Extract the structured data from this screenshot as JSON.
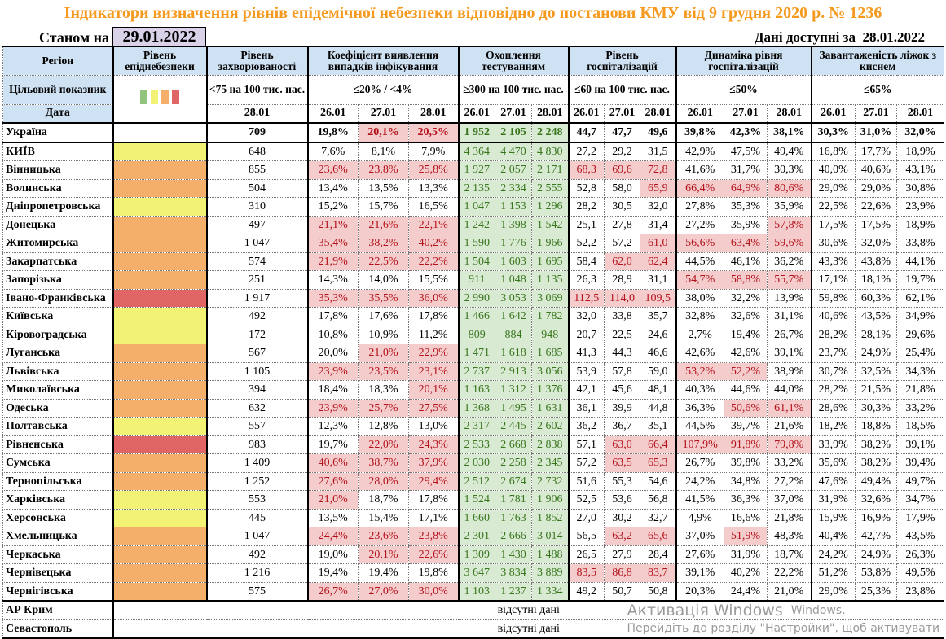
{
  "title": "Індикатори визначення рівнів епідемічної небезпеки відповідно до постанови КМУ від 9 грудня 2020 р. № 1236",
  "as_of_label": "Станом на",
  "as_of_date": "29.01.2022",
  "available_label": "Дані доступні за  28.01.2022",
  "level_colors": {
    "green": "#93c47d",
    "yellow": "#f2f274",
    "orange": "#f4b06b",
    "red": "#e06666"
  },
  "colors": {
    "header_bg": "#cfe2f3",
    "highlight_bg": "#f4cccc",
    "highlight_text": "#b4121b",
    "testing_bg": "#d9ead3",
    "testing_text": "#38761d"
  },
  "headers": {
    "region": "Регіон",
    "level": "Рівень епіднебезпеки",
    "incidence": "Рівень захворюваності",
    "coef": "Коефіцієнт виявлення випадків інфікування",
    "testing": "Охоплення тестуванням",
    "hosp": "Рівень госпіталізацій",
    "dyn": "Динаміка рівня госпіталізацій",
    "beds": "Завантаженість ліжок з киснем",
    "target_label": "Цільовий показник",
    "date_label": "Дата",
    "target_incidence": "<75 на 100 тис. нас.",
    "target_coef": "≤20% / <4%",
    "target_testing": "≥300 на 100 тис. нас.",
    "target_hosp": "≤60 на 100 тис. нас.",
    "target_dyn": "≤50%",
    "target_beds": "≤65%",
    "incidence_date": "28.01",
    "dates": [
      "26.01",
      "27.01",
      "28.01"
    ]
  },
  "thresholds": {
    "coef": 20,
    "hosp": 60,
    "dyn": 50,
    "beds": 65
  },
  "ukraine": [
    "Україна",
    "",
    "709",
    [
      "19,8%",
      "20,1%",
      "20,5%"
    ],
    [
      "1 952",
      "2 105",
      "2 248"
    ],
    [
      "44,7",
      "47,7",
      "49,6"
    ],
    [
      "39,8%",
      "42,3%",
      "38,1%"
    ],
    [
      "30,3%",
      "31,0%",
      "32,0%"
    ]
  ],
  "rows": [
    [
      "КИЇВ",
      "yellow",
      "648",
      [
        "7,6%",
        "8,1%",
        "7,9%"
      ],
      [
        "4 364",
        "4 470",
        "4 830"
      ],
      [
        "27,2",
        "29,2",
        "31,5"
      ],
      [
        "42,9%",
        "47,5%",
        "49,4%"
      ],
      [
        "16,8%",
        "17,7%",
        "18,9%"
      ]
    ],
    [
      "Вінницька",
      "orange",
      "855",
      [
        "23,6%",
        "23,8%",
        "25,8%"
      ],
      [
        "1 927",
        "2 057",
        "2 171"
      ],
      [
        "68,3",
        "69,6",
        "72,8"
      ],
      [
        "41,6%",
        "31,7%",
        "30,3%"
      ],
      [
        "40,0%",
        "40,6%",
        "43,1%"
      ]
    ],
    [
      "Волинська",
      "orange",
      "504",
      [
        "13,4%",
        "13,5%",
        "13,3%"
      ],
      [
        "2 135",
        "2 334",
        "2 555"
      ],
      [
        "52,8",
        "58,0",
        "65,9"
      ],
      [
        "66,4%",
        "64,9%",
        "80,6%"
      ],
      [
        "29,0%",
        "29,0%",
        "30,8%"
      ]
    ],
    [
      "Дніпропетровська",
      "yellow",
      "310",
      [
        "15,2%",
        "15,7%",
        "16,5%"
      ],
      [
        "1 047",
        "1 153",
        "1 296"
      ],
      [
        "28,2",
        "30,5",
        "32,0"
      ],
      [
        "27,8%",
        "35,3%",
        "35,9%"
      ],
      [
        "22,5%",
        "22,6%",
        "23,9%"
      ]
    ],
    [
      "Донецька",
      "orange",
      "497",
      [
        "21,1%",
        "21,6%",
        "22,1%"
      ],
      [
        "1 242",
        "1 398",
        "1 542"
      ],
      [
        "25,1",
        "27,8",
        "31,4"
      ],
      [
        "27,2%",
        "35,9%",
        "57,8%"
      ],
      [
        "17,5%",
        "17,5%",
        "18,9%"
      ]
    ],
    [
      "Житомирська",
      "orange",
      "1 047",
      [
        "35,4%",
        "38,2%",
        "40,2%"
      ],
      [
        "1 590",
        "1 776",
        "1 966"
      ],
      [
        "52,2",
        "57,2",
        "61,0"
      ],
      [
        "56,6%",
        "63,4%",
        "59,6%"
      ],
      [
        "30,6%",
        "32,0%",
        "33,8%"
      ]
    ],
    [
      "Закарпатська",
      "orange",
      "574",
      [
        "21,9%",
        "22,5%",
        "22,2%"
      ],
      [
        "1 504",
        "1 603",
        "1 695"
      ],
      [
        "58,4",
        "62,0",
        "62,4"
      ],
      [
        "44,5%",
        "46,1%",
        "36,2%"
      ],
      [
        "43,3%",
        "43,8%",
        "44,1%"
      ]
    ],
    [
      "Запорізька",
      "orange",
      "251",
      [
        "14,3%",
        "14,0%",
        "15,5%"
      ],
      [
        "911",
        "1 048",
        "1 135"
      ],
      [
        "26,3",
        "28,9",
        "31,1"
      ],
      [
        "54,7%",
        "58,8%",
        "55,7%"
      ],
      [
        "17,1%",
        "18,1%",
        "19,7%"
      ]
    ],
    [
      "Івано-Франківська",
      "red",
      "1 917",
      [
        "35,3%",
        "35,5%",
        "36,0%"
      ],
      [
        "2 990",
        "3 053",
        "3 069"
      ],
      [
        "112,5",
        "114,0",
        "109,5"
      ],
      [
        "38,0%",
        "32,2%",
        "13,9%"
      ],
      [
        "59,8%",
        "60,3%",
        "62,1%"
      ]
    ],
    [
      "Київська",
      "yellow",
      "492",
      [
        "17,8%",
        "17,6%",
        "17,8%"
      ],
      [
        "1 466",
        "1 642",
        "1 782"
      ],
      [
        "32,0",
        "33,8",
        "35,7"
      ],
      [
        "32,8%",
        "32,6%",
        "31,1%"
      ],
      [
        "40,6%",
        "43,5%",
        "34,9%"
      ]
    ],
    [
      "Кіровоградська",
      "yellow",
      "172",
      [
        "10,8%",
        "10,9%",
        "11,2%"
      ],
      [
        "809",
        "884",
        "948"
      ],
      [
        "20,7",
        "22,5",
        "24,6"
      ],
      [
        "2,7%",
        "19,4%",
        "26,7%"
      ],
      [
        "28,2%",
        "28,1%",
        "29,6%"
      ]
    ],
    [
      "Луганська",
      "orange",
      "567",
      [
        "20,0%",
        "21,0%",
        "22,9%"
      ],
      [
        "1 471",
        "1 618",
        "1 685"
      ],
      [
        "41,3",
        "44,3",
        "46,6"
      ],
      [
        "42,6%",
        "42,6%",
        "39,1%"
      ],
      [
        "23,7%",
        "24,9%",
        "25,4%"
      ]
    ],
    [
      "Львівська",
      "orange",
      "1 105",
      [
        "23,9%",
        "23,5%",
        "23,1%"
      ],
      [
        "2 737",
        "2 913",
        "3 056"
      ],
      [
        "53,9",
        "57,8",
        "59,0"
      ],
      [
        "53,2%",
        "52,2%",
        "38,9%"
      ],
      [
        "30,7%",
        "32,5%",
        "34,3%"
      ]
    ],
    [
      "Миколаївська",
      "orange",
      "394",
      [
        "18,4%",
        "18,3%",
        "20,1%"
      ],
      [
        "1 163",
        "1 312",
        "1 376"
      ],
      [
        "42,1",
        "45,6",
        "48,1"
      ],
      [
        "40,3%",
        "44,6%",
        "44,0%"
      ],
      [
        "28,2%",
        "21,5%",
        "21,8%"
      ]
    ],
    [
      "Одеська",
      "orange",
      "632",
      [
        "23,9%",
        "25,7%",
        "27,5%"
      ],
      [
        "1 368",
        "1 495",
        "1 631"
      ],
      [
        "36,1",
        "39,9",
        "44,8"
      ],
      [
        "36,3%",
        "50,6%",
        "61,1%"
      ],
      [
        "28,6%",
        "30,3%",
        "33,2%"
      ]
    ],
    [
      "Полтавська",
      "yellow",
      "557",
      [
        "12,3%",
        "12,8%",
        "13,0%"
      ],
      [
        "2 317",
        "2 445",
        "2 602"
      ],
      [
        "36,2",
        "36,7",
        "35,1"
      ],
      [
        "44,5%",
        "39,7%",
        "21,6%"
      ],
      [
        "18,2%",
        "18,8%",
        "18,5%"
      ]
    ],
    [
      "Рівненська",
      "red",
      "983",
      [
        "19,7%",
        "22,0%",
        "24,3%"
      ],
      [
        "2 533",
        "2 668",
        "2 838"
      ],
      [
        "57,1",
        "63,0",
        "66,4"
      ],
      [
        "107,9%",
        "91,8%",
        "79,8%"
      ],
      [
        "33,9%",
        "38,2%",
        "39,1%"
      ]
    ],
    [
      "Сумська",
      "orange",
      "1 409",
      [
        "40,6%",
        "38,7%",
        "37,9%"
      ],
      [
        "2 030",
        "2 258",
        "2 345"
      ],
      [
        "57,2",
        "63,5",
        "65,3"
      ],
      [
        "26,7%",
        "39,8%",
        "33,2%"
      ],
      [
        "35,6%",
        "38,2%",
        "39,4%"
      ]
    ],
    [
      "Тернопільська",
      "orange",
      "1 252",
      [
        "27,6%",
        "28,0%",
        "29,4%"
      ],
      [
        "2 512",
        "2 674",
        "2 732"
      ],
      [
        "51,6",
        "55,3",
        "54,6"
      ],
      [
        "24,2%",
        "34,8%",
        "27,2%"
      ],
      [
        "47,6%",
        "49,4%",
        "49,7%"
      ]
    ],
    [
      "Харківська",
      "yellow",
      "553",
      [
        "21,0%",
        "18,7%",
        "17,8%"
      ],
      [
        "1 524",
        "1 781",
        "1 906"
      ],
      [
        "52,5",
        "53,6",
        "56,8"
      ],
      [
        "41,5%",
        "36,3%",
        "37,0%"
      ],
      [
        "31,9%",
        "32,6%",
        "34,7%"
      ]
    ],
    [
      "Херсонська",
      "yellow",
      "445",
      [
        "13,5%",
        "15,4%",
        "17,1%"
      ],
      [
        "1 660",
        "1 763",
        "1 852"
      ],
      [
        "27,0",
        "30,2",
        "32,7"
      ],
      [
        "4,9%",
        "16,6%",
        "21,8%"
      ],
      [
        "15,9%",
        "16,9%",
        "17,9%"
      ]
    ],
    [
      "Хмельницька",
      "orange",
      "1 047",
      [
        "24,4%",
        "23,6%",
        "23,8%"
      ],
      [
        "2 301",
        "2 666",
        "3 014"
      ],
      [
        "56,5",
        "63,2",
        "65,6"
      ],
      [
        "37,0%",
        "51,9%",
        "48,3%"
      ],
      [
        "40,4%",
        "42,7%",
        "43,5%"
      ]
    ],
    [
      "Черкаська",
      "orange",
      "492",
      [
        "19,0%",
        "20,1%",
        "22,6%"
      ],
      [
        "1 309",
        "1 430",
        "1 488"
      ],
      [
        "26,5",
        "27,9",
        "28,4"
      ],
      [
        "27,6%",
        "31,9%",
        "18,7%"
      ],
      [
        "24,2%",
        "24,9%",
        "26,3%"
      ]
    ],
    [
      "Чернівецька",
      "orange",
      "1 216",
      [
        "19,4%",
        "19,4%",
        "19,8%"
      ],
      [
        "3 647",
        "3 834",
        "3 889"
      ],
      [
        "83,5",
        "86,8",
        "83,7"
      ],
      [
        "39,1%",
        "40,2%",
        "22,2%"
      ],
      [
        "51,2%",
        "53,8%",
        "49,5%"
      ]
    ],
    [
      "Чернігівська",
      "orange",
      "575",
      [
        "26,7%",
        "27,0%",
        "30,0%"
      ],
      [
        "1 103",
        "1 237",
        "1 334"
      ],
      [
        "49,2",
        "50,7",
        "50,8"
      ],
      [
        "20,3%",
        "24,4%",
        "21,0%"
      ],
      [
        "29,0%",
        "25,3%",
        "23,8%"
      ]
    ]
  ],
  "missing": [
    {
      "region": "АР Крим",
      "text": "відсутні дані"
    },
    {
      "region": "Севастополь",
      "text": "відсутні дані"
    }
  ],
  "watermark": [
    "Активація Windows",
    "Перейдіть до розділу \"Настройки\", щоб активувати",
    "Windows."
  ]
}
